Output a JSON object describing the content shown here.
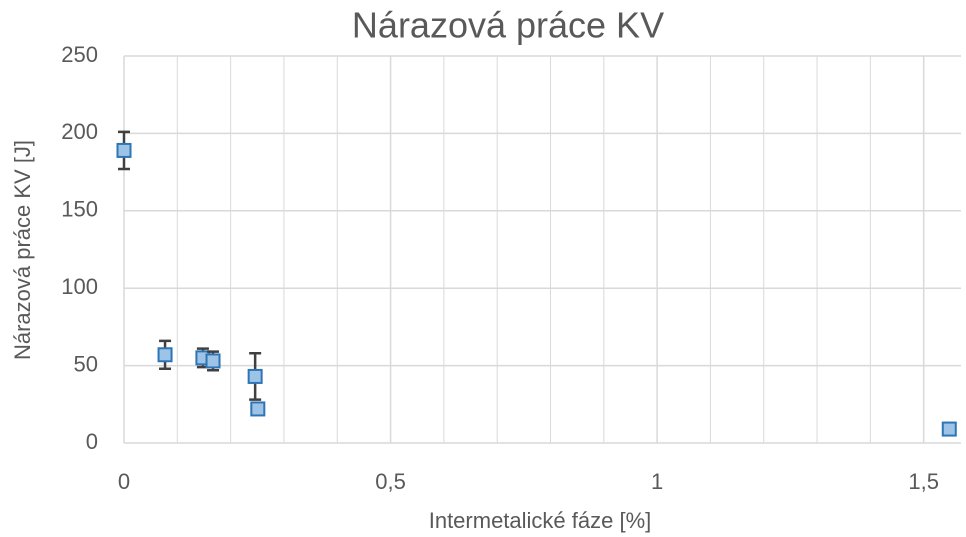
{
  "chart_data": {
    "type": "scatter",
    "title": "Nárazová práce KV",
    "xlabel": "Intermetalické fáze [%]",
    "ylabel": "Nárazová práce KV [J]",
    "x": [
      0,
      0.077,
      0.148,
      0.167,
      0.246,
      0.251,
      1.548
    ],
    "values": [
      189,
      57,
      55,
      53,
      43,
      22,
      9
    ],
    "errors": [
      12,
      9,
      6,
      6,
      15,
      0,
      0
    ],
    "color": "#9dc3e6",
    "edge_color": "#2e75b6",
    "error_color": "#404040",
    "xlim": [
      0,
      1.57
    ],
    "ylim": [
      0,
      250
    ],
    "xticks": [
      0,
      {
        "value": 0.5,
        "label": "0,5"
      },
      1,
      {
        "value": 1.5,
        "label": "1,5"
      }
    ],
    "xminor_grid": [
      0.1,
      0.2,
      0.3,
      0.4,
      0.6,
      0.7,
      0.8,
      0.9,
      1.1,
      1.2,
      1.3,
      1.4
    ],
    "yticks": [
      0,
      50,
      100,
      150,
      200,
      250
    ],
    "grid": true
  }
}
